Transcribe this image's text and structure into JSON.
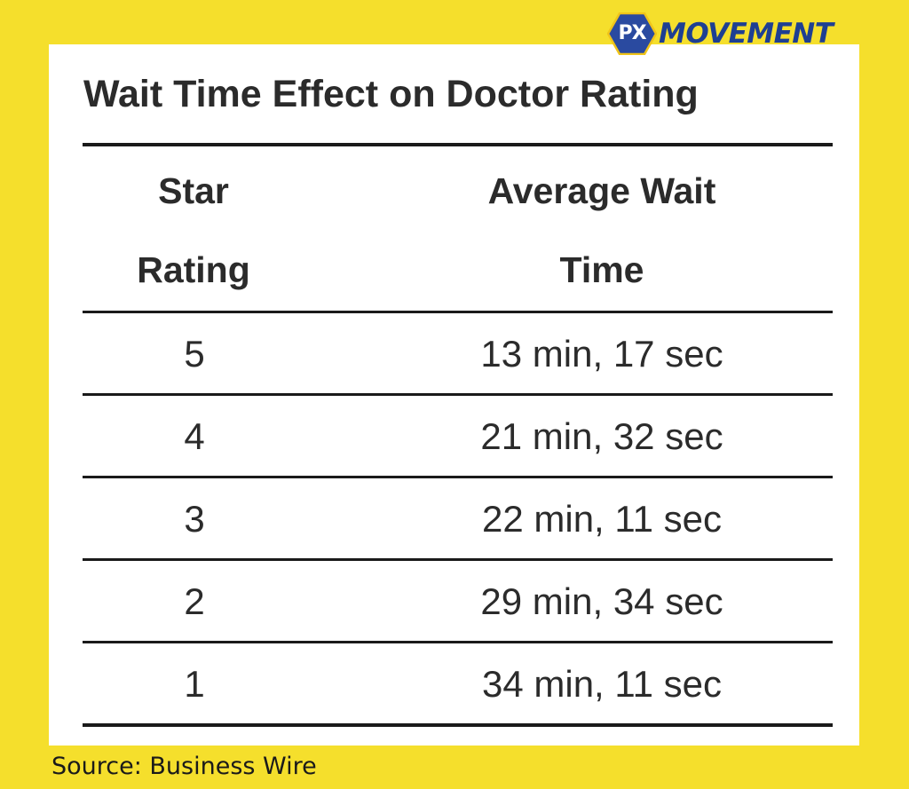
{
  "logo": {
    "badge_text": "PX",
    "word_text": "MOVEMENT",
    "badge_color": "#2a4aa0",
    "word_color": "#1e3f92"
  },
  "source_note": "Source: Business Wire",
  "colors": {
    "background": "#f5df2c",
    "card": "#ffffff",
    "text": "#2b2b2b"
  },
  "chart_data": {
    "type": "table",
    "title": "Wait Time Effect on Doctor Rating",
    "columns": [
      {
        "line1": "Star",
        "line2": "Rating"
      },
      {
        "line1": "Average Wait",
        "line2": "Time"
      }
    ],
    "rows": [
      {
        "rating": "5",
        "wait": "13 min, 17 sec"
      },
      {
        "rating": "4",
        "wait": "21 min, 32 sec"
      },
      {
        "rating": "3",
        "wait": "22 min, 11 sec"
      },
      {
        "rating": "2",
        "wait": "29 min, 34 sec"
      },
      {
        "rating": "1",
        "wait": "34 min, 11 sec"
      }
    ]
  }
}
